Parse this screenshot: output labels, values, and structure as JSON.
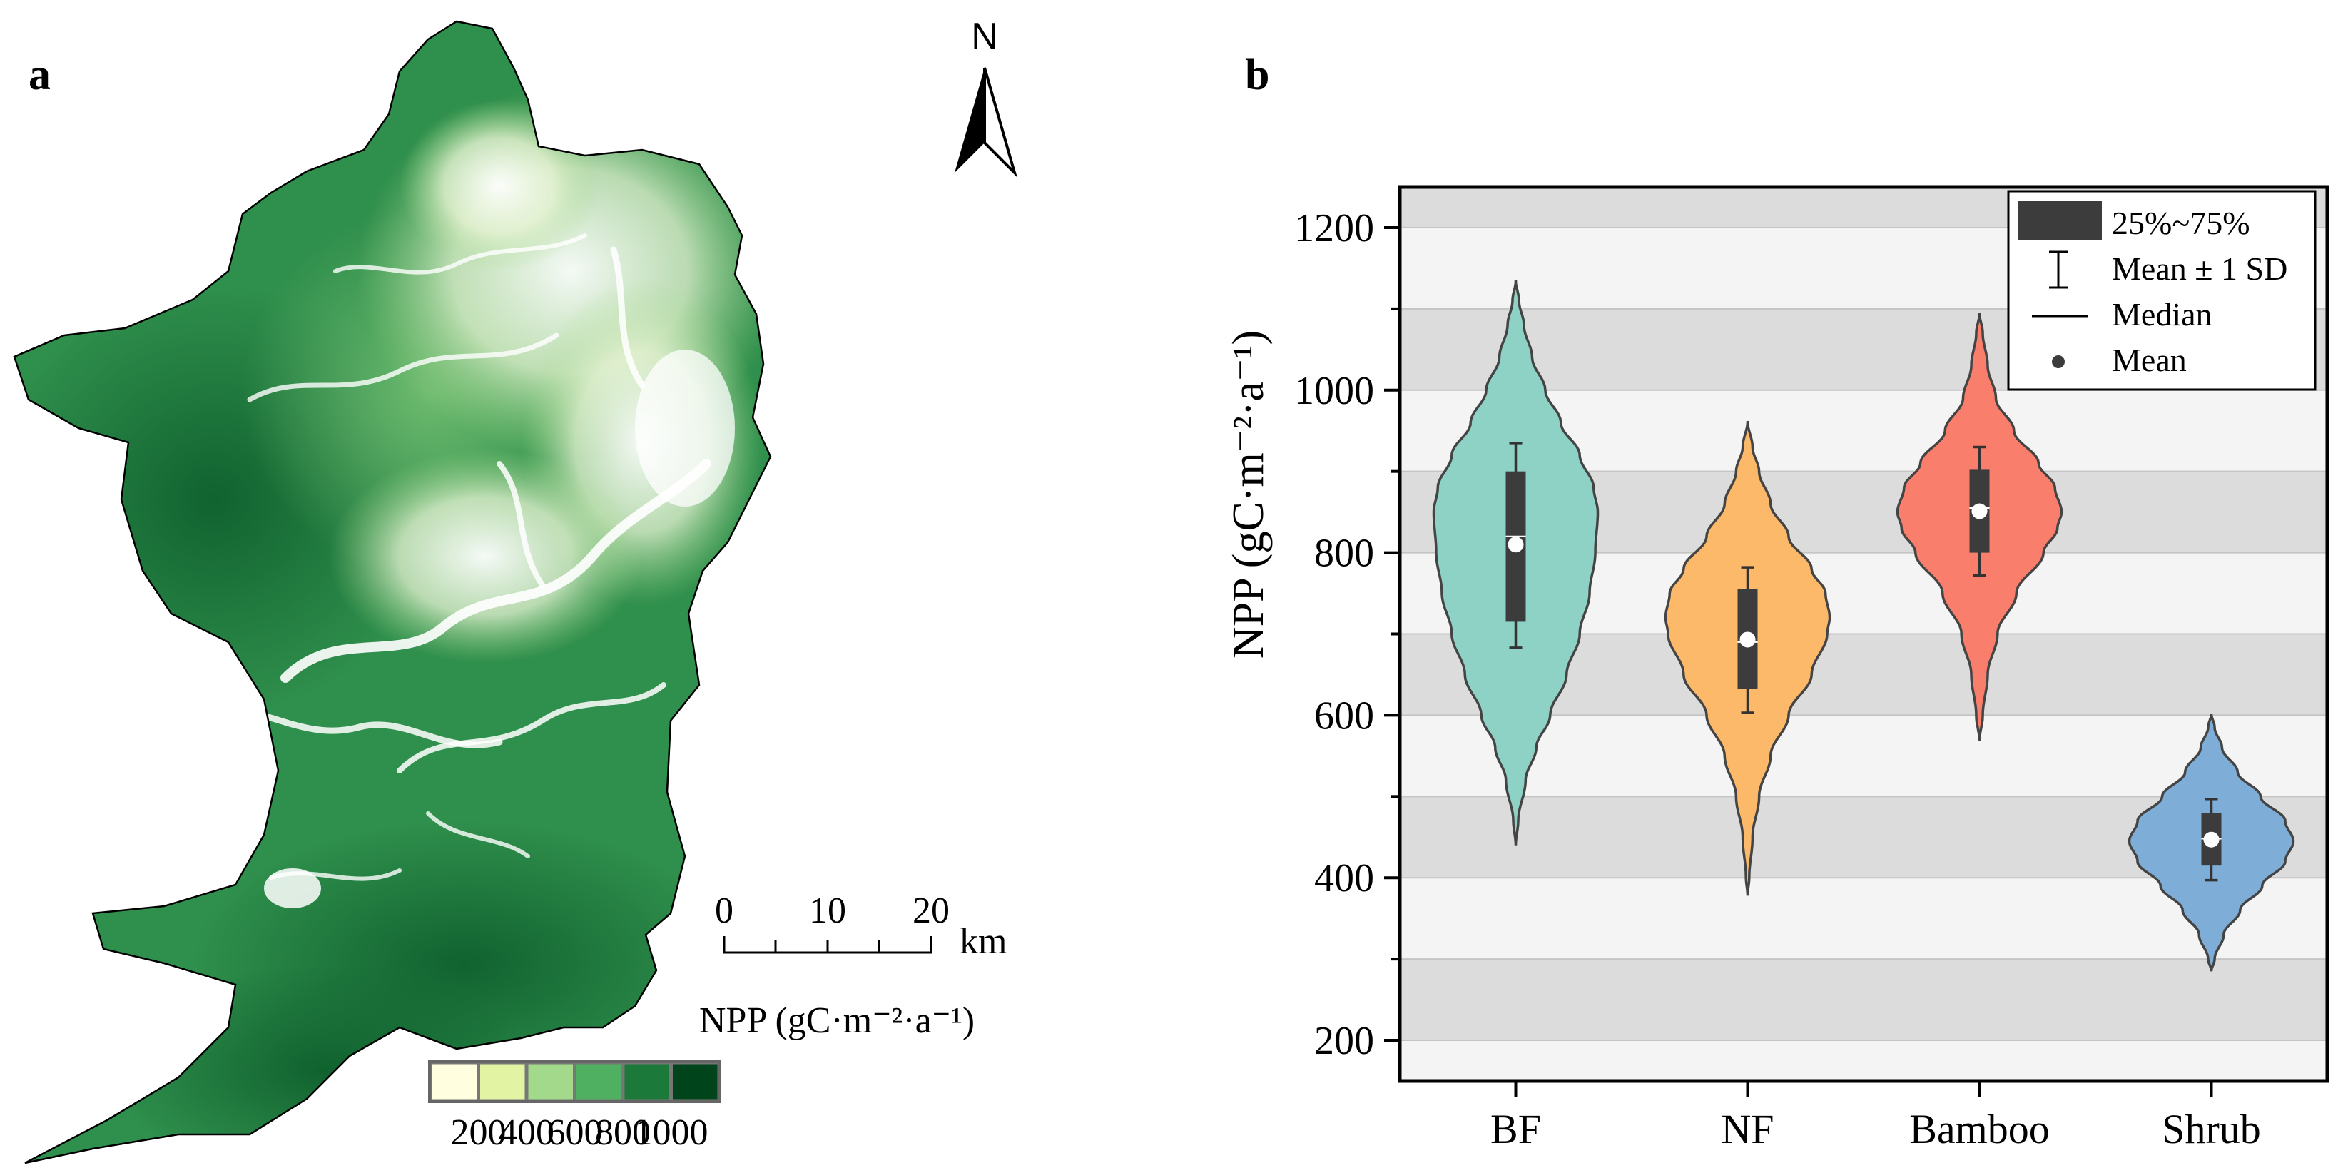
{
  "panel_a": {
    "label": "a",
    "north_label": "N",
    "scalebar": {
      "ticks": [
        "0",
        "10",
        "20"
      ],
      "unit": "km"
    },
    "legend": {
      "title": "NPP (gC·m⁻²·a⁻¹)",
      "bins": [
        {
          "color": "#ffffe0"
        },
        {
          "color": "#e3f3a4"
        },
        {
          "color": "#a3d98b"
        },
        {
          "color": "#4fb062"
        },
        {
          "color": "#1b7a3a"
        },
        {
          "color": "#00441b"
        }
      ],
      "labels": [
        "200",
        "400",
        "600",
        "800",
        "1000"
      ]
    },
    "colors": {
      "outline": "#000000",
      "forest_dark": "#1b7a3a",
      "forest_mid": "#4fb062",
      "forest_light": "#a3d98b"
    }
  },
  "panel_b": {
    "label": "b",
    "legend": {
      "box_label": "25%~75%",
      "sd_label": "Mean ± 1 SD",
      "median_label": "Median",
      "mean_label": "Mean"
    }
  },
  "chart_data": {
    "type": "violin",
    "ylabel": "NPP (gC·m⁻²·a⁻¹)",
    "ylim": [
      150,
      1250
    ],
    "yticks": [
      200,
      400,
      600,
      800,
      1000,
      1200
    ],
    "ytick_labels": [
      "200",
      "400",
      "600",
      "800",
      "1000",
      "1200"
    ],
    "categories": [
      "BF",
      "NF",
      "Bamboo",
      "Shrub"
    ],
    "background_bands": [
      "#dcdcdc",
      "#f4f4f4"
    ],
    "series": [
      {
        "name": "BF",
        "color": "#8ed2c6",
        "min": 440,
        "max": 1135,
        "q1": 715,
        "median": 820,
        "q3": 900,
        "mean": 810,
        "sd_low": 683,
        "sd_high": 935,
        "density": [
          [
            440,
            0
          ],
          [
            470,
            0.03
          ],
          [
            520,
            0.12
          ],
          [
            560,
            0.25
          ],
          [
            600,
            0.42
          ],
          [
            650,
            0.62
          ],
          [
            700,
            0.78
          ],
          [
            750,
            0.9
          ],
          [
            800,
            0.97
          ],
          [
            850,
            1.0
          ],
          [
            880,
            0.95
          ],
          [
            920,
            0.78
          ],
          [
            960,
            0.55
          ],
          [
            1000,
            0.36
          ],
          [
            1040,
            0.2
          ],
          [
            1080,
            0.1
          ],
          [
            1110,
            0.04
          ],
          [
            1135,
            0
          ]
        ]
      },
      {
        "name": "NF",
        "color": "#fdb96a",
        "min": 378,
        "max": 962,
        "q1": 632,
        "median": 690,
        "q3": 755,
        "mean": 693,
        "sd_low": 603,
        "sd_high": 782,
        "density": [
          [
            378,
            0
          ],
          [
            400,
            0.02
          ],
          [
            450,
            0.06
          ],
          [
            500,
            0.14
          ],
          [
            550,
            0.28
          ],
          [
            600,
            0.5
          ],
          [
            650,
            0.78
          ],
          [
            700,
            0.97
          ],
          [
            720,
            1.0
          ],
          [
            750,
            0.95
          ],
          [
            780,
            0.78
          ],
          [
            820,
            0.5
          ],
          [
            860,
            0.28
          ],
          [
            900,
            0.14
          ],
          [
            930,
            0.06
          ],
          [
            962,
            0
          ]
        ]
      },
      {
        "name": "Bamboo",
        "color": "#f97f6c",
        "min": 568,
        "max": 1095,
        "q1": 800,
        "median": 855,
        "q3": 902,
        "mean": 851,
        "sd_low": 772,
        "sd_high": 930,
        "density": [
          [
            568,
            0
          ],
          [
            600,
            0.04
          ],
          [
            650,
            0.1
          ],
          [
            700,
            0.22
          ],
          [
            750,
            0.45
          ],
          [
            800,
            0.78
          ],
          [
            830,
            0.95
          ],
          [
            850,
            1.0
          ],
          [
            880,
            0.92
          ],
          [
            910,
            0.72
          ],
          [
            950,
            0.42
          ],
          [
            990,
            0.2
          ],
          [
            1030,
            0.1
          ],
          [
            1070,
            0.04
          ],
          [
            1095,
            0
          ]
        ]
      },
      {
        "name": "Shrub",
        "color": "#7eaed7",
        "min": 285,
        "max": 602,
        "q1": 415,
        "median": 448,
        "q3": 480,
        "mean": 447,
        "sd_low": 397,
        "sd_high": 497,
        "density": [
          [
            285,
            0
          ],
          [
            300,
            0.04
          ],
          [
            330,
            0.15
          ],
          [
            360,
            0.35
          ],
          [
            390,
            0.62
          ],
          [
            420,
            0.9
          ],
          [
            445,
            1.0
          ],
          [
            470,
            0.9
          ],
          [
            500,
            0.6
          ],
          [
            530,
            0.32
          ],
          [
            560,
            0.13
          ],
          [
            585,
            0.04
          ],
          [
            602,
            0
          ]
        ]
      }
    ]
  }
}
